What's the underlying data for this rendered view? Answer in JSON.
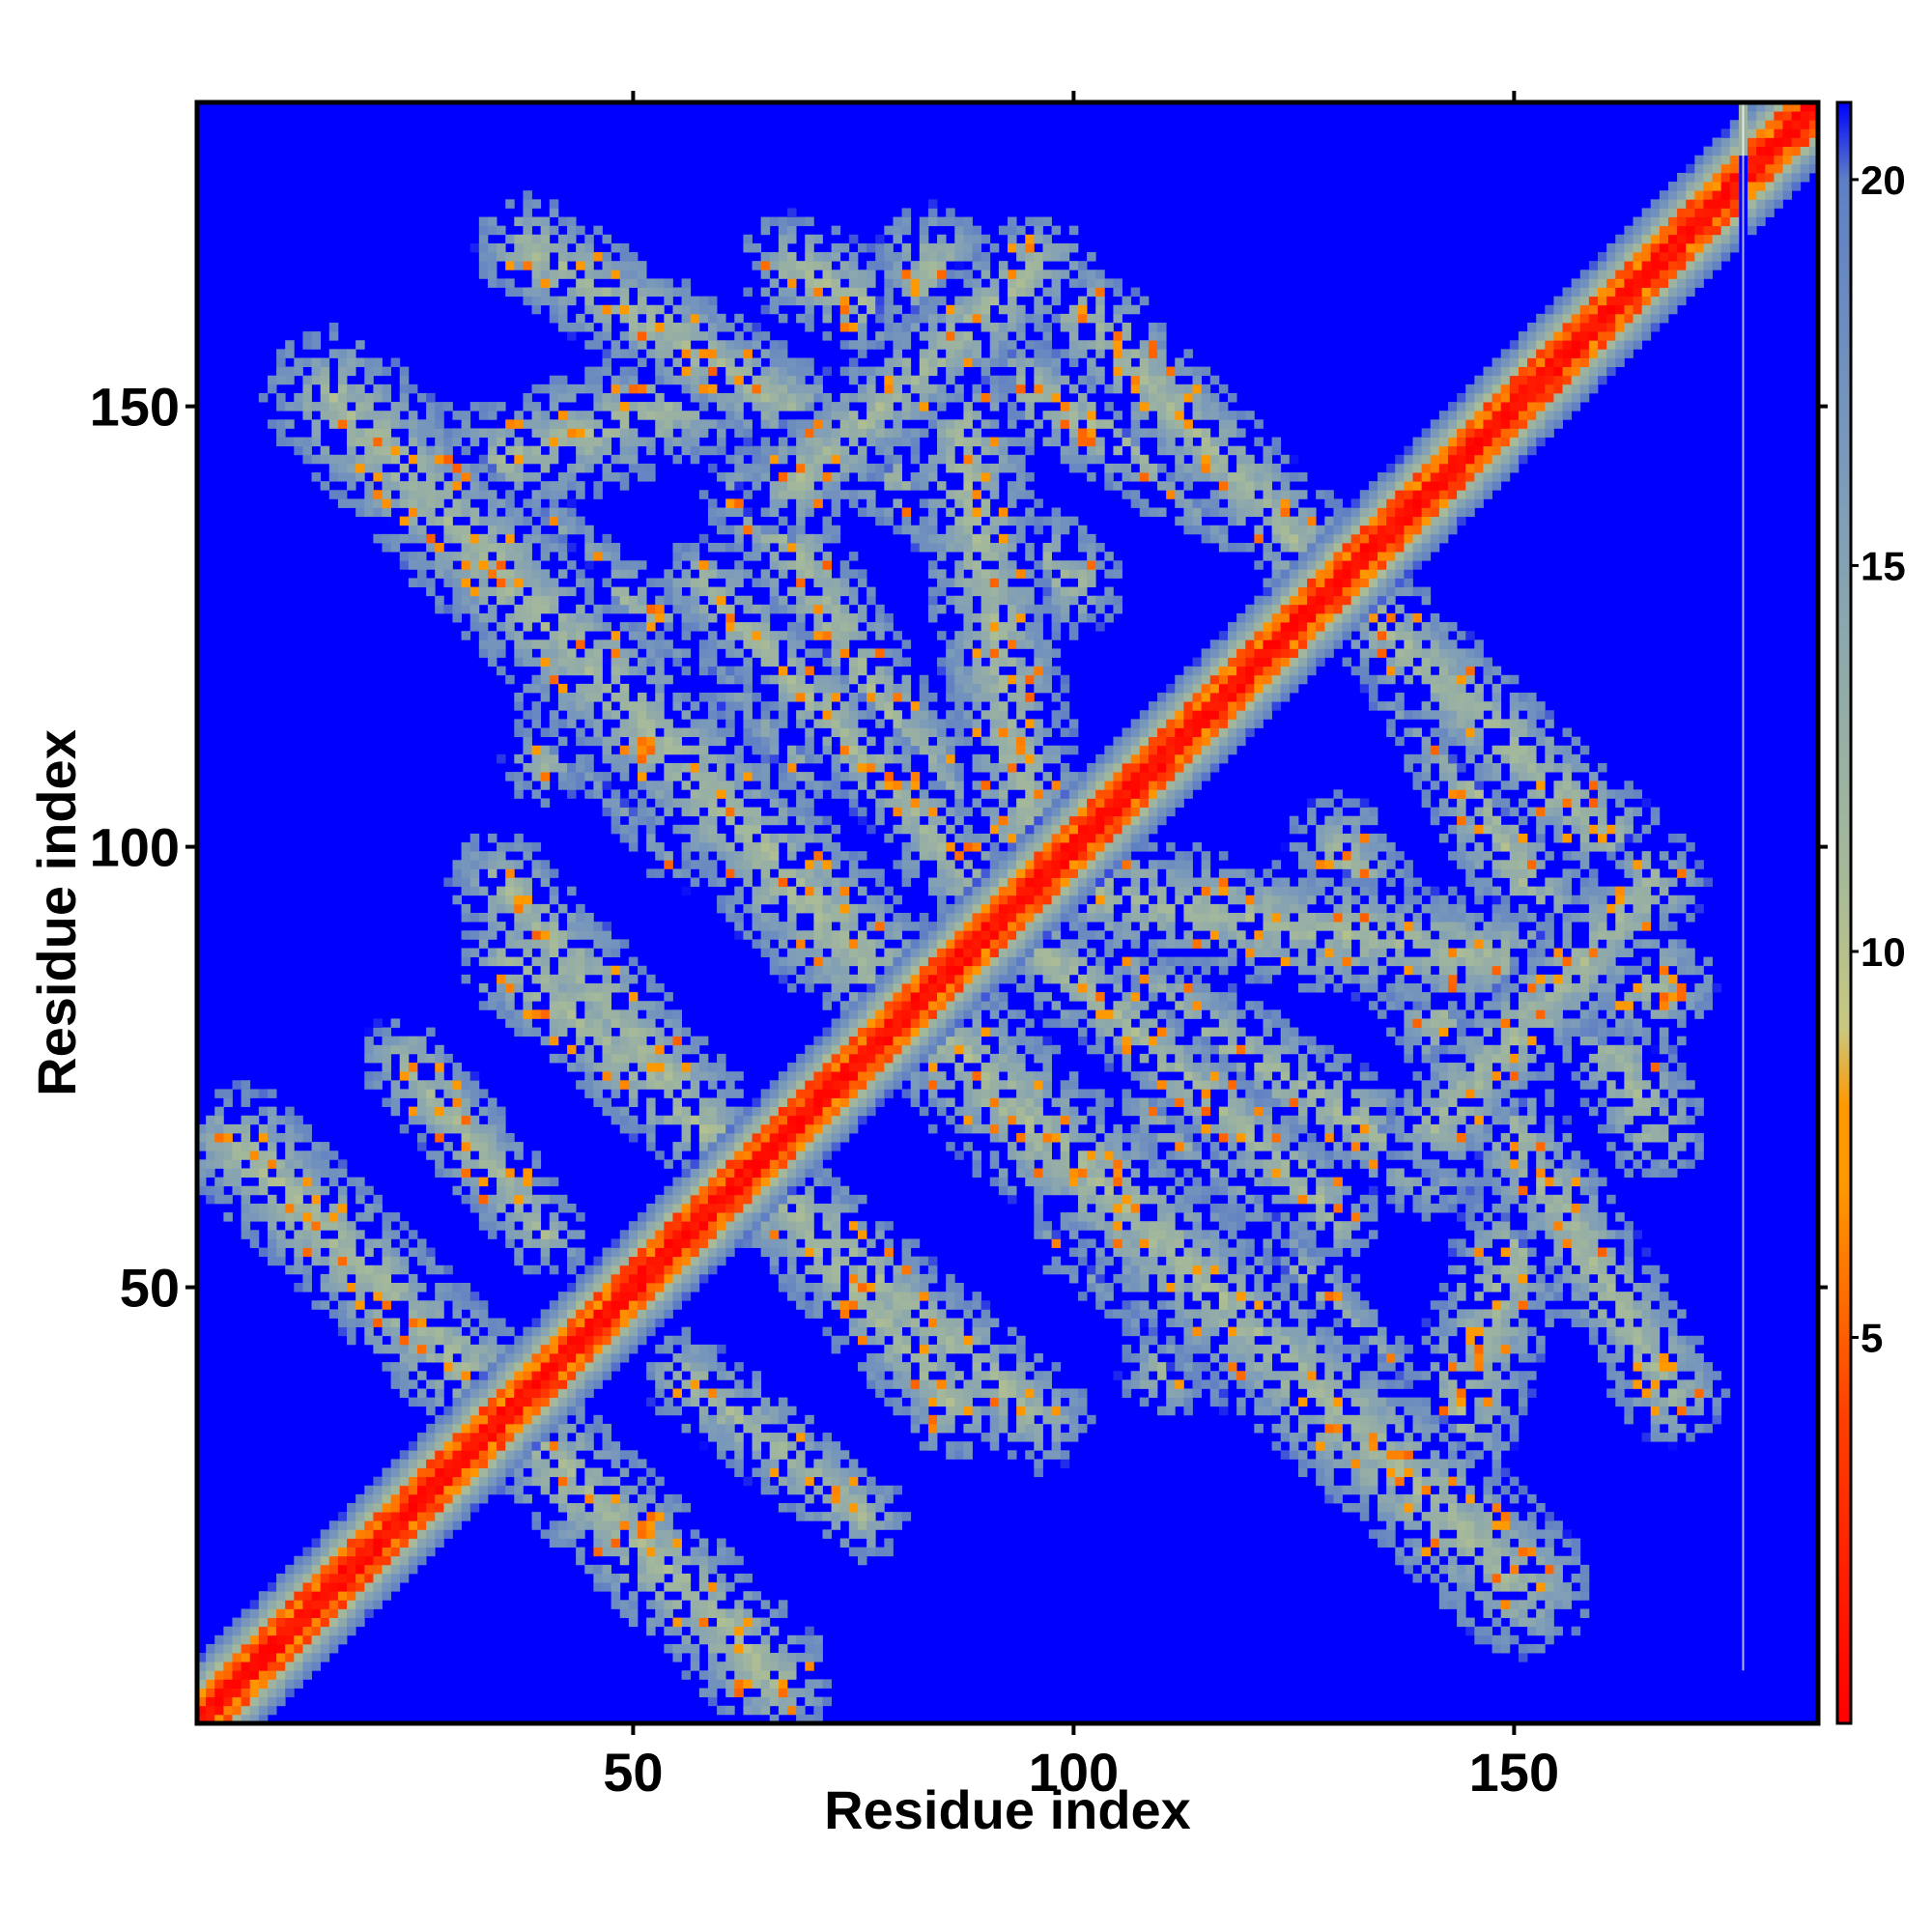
{
  "chart_data": {
    "type": "heatmap",
    "title": "",
    "xlabel": "Residue index",
    "ylabel": "Residue index",
    "n_residues": 184,
    "xlim": [
      1,
      184
    ],
    "ylim": [
      1,
      184
    ],
    "x_ticks": [
      50,
      100,
      150
    ],
    "y_ticks": [
      50,
      100,
      150
    ],
    "colorbar": {
      "range": [
        0,
        21
      ],
      "ticks": [
        5,
        10,
        15,
        20
      ],
      "stops": [
        {
          "value": 0,
          "color": "#ff0000"
        },
        {
          "value": 4,
          "color": "#ff4000"
        },
        {
          "value": 7,
          "color": "#ff9900"
        },
        {
          "value": 8,
          "color": "#ff9900"
        },
        {
          "value": 9,
          "color": "#c8c880"
        },
        {
          "value": 11,
          "color": "#a5b99a"
        },
        {
          "value": 16,
          "color": "#7d9cb9"
        },
        {
          "value": 20,
          "color": "#5f7fc4"
        },
        {
          "value": 21,
          "color": "#0000ff"
        }
      ]
    },
    "background_value": 21,
    "diagonal_band": {
      "core_halfwidth": 3,
      "band_halfwidth": 7
    },
    "contact_bands": [
      {
        "start": [
          6,
          66
        ],
        "end": [
          66,
          5
        ],
        "halfwidth": 7
      },
      {
        "start": [
          16,
          151
        ],
        "end": [
          96,
          67
        ],
        "halfwidth": 8
      },
      {
        "start": [
          36,
          87
        ],
        "end": [
          96,
          35
        ],
        "halfwidth": 6
      },
      {
        "start": [
          58,
          130
        ],
        "end": [
          100,
          84
        ],
        "halfwidth": 5
      },
      {
        "start": [
          68,
          141
        ],
        "end": [
          96,
          166
        ],
        "halfwidth": 6
      },
      {
        "start": [
          96,
          166
        ],
        "end": [
          130,
          130
        ],
        "halfwidth": 6
      },
      {
        "start": [
          58,
          58
        ],
        "end": [
          100,
          100
        ],
        "halfwidth": 5
      },
      {
        "start": [
          96,
          96
        ],
        "end": [
          166,
          84
        ],
        "halfwidth": 7
      },
      {
        "start": [
          132,
          132
        ],
        "end": [
          166,
          68
        ],
        "halfwidth": 6
      },
      {
        "start": [
          130,
          100
        ],
        "end": [
          168,
          38
        ],
        "halfwidth": 6
      },
      {
        "start": [
          100,
          88
        ],
        "end": [
          140,
          64
        ],
        "halfwidth": 6
      },
      {
        "start": [
          30,
          142
        ],
        "end": [
          60,
          152
        ],
        "halfwidth": 7
      },
      {
        "start": [
          40,
          120
        ],
        "end": [
          56,
          100
        ],
        "halfwidth": 5
      },
      {
        "start": [
          40,
          110
        ],
        "end": [
          54,
          120
        ],
        "halfwidth": 5
      },
      {
        "start": [
          110,
          70
        ],
        "end": [
          122,
          62
        ],
        "halfwidth": 5
      },
      {
        "start": [
          120,
          58
        ],
        "end": [
          146,
          26
        ],
        "halfwidth": 5
      },
      {
        "start": [
          56,
          40
        ],
        "end": [
          76,
          24
        ],
        "halfwidth": 5
      }
    ],
    "blank_column": 176
  }
}
